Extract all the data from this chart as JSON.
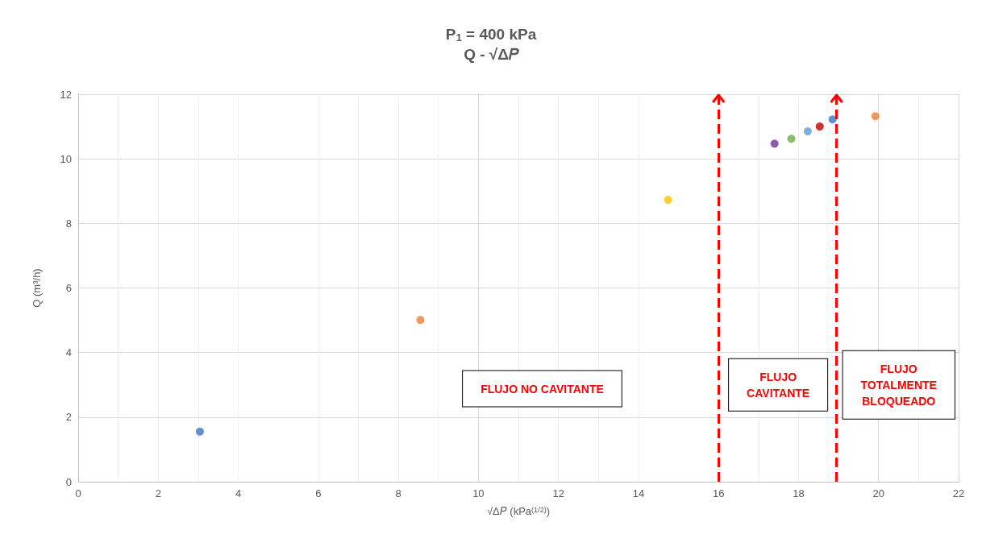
{
  "chart_data": {
    "type": "scatter",
    "title": "P$_{1}$ = 400 kPa",
    "subtitle": "Q - √Δ𝑃",
    "xlabel": "√Δ𝑃 (kPa$^{(1/2)}$)",
    "ylabel": "Q (m³/h)",
    "x": [
      3.04,
      8.55,
      14.74,
      17.4,
      17.82,
      18.23,
      18.53,
      18.85,
      19.92
    ],
    "values": [
      1.55,
      5.01,
      8.73,
      10.47,
      10.62,
      10.85,
      11.0,
      11.22,
      11.32
    ],
    "colors": [
      "#4472c4",
      "#ed7d31",
      "#ffc000",
      "#7030a0",
      "#70ad47",
      "#5b9bd5",
      "#c00000",
      "#4472c4",
      "#ed7d31"
    ],
    "xlim": [
      0,
      22
    ],
    "xticks": [
      0,
      2,
      4,
      6,
      8,
      10,
      12,
      14,
      16,
      18,
      20,
      22
    ],
    "ylim": [
      0,
      12
    ],
    "yticks": [
      0,
      2,
      4,
      6,
      8,
      10,
      12
    ],
    "grid": true,
    "marker": "circle",
    "ref_lines": [
      {
        "axis": "x",
        "value": 16,
        "color": "#ff0000",
        "line_style": "dashed"
      },
      {
        "axis": "x",
        "value": 18.95,
        "color": "#ff0000",
        "line_style": "dashed"
      }
    ],
    "annotations": [
      "FLUJO NO CAVITANTE",
      "FLUJO\nCAVITANTE",
      "FLUJO\nTOTALMENTE\nBLOQUEADO"
    ]
  }
}
